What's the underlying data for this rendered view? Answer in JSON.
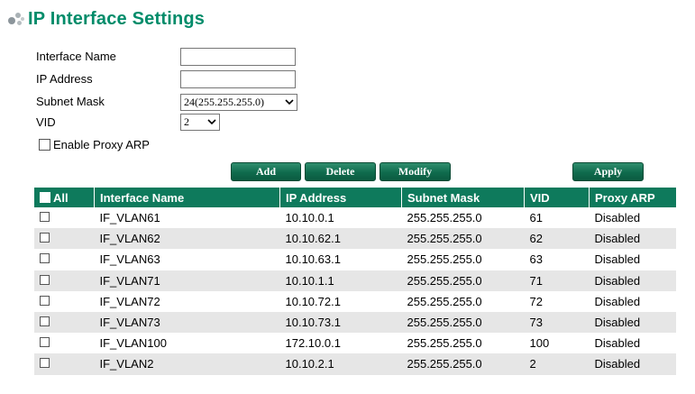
{
  "page": {
    "title": "IP Interface Settings"
  },
  "form": {
    "interface_name_label": "Interface Name",
    "interface_name_value": "",
    "ip_address_label": "IP Address",
    "ip_address_value": "",
    "subnet_mask_label": "Subnet Mask",
    "subnet_mask_selected": "24(255.255.255.0)",
    "vid_label": "VID",
    "vid_selected": "2",
    "proxy_arp_label": "Enable Proxy ARP"
  },
  "buttons": {
    "add": "Add",
    "delete": "Delete",
    "modify": "Modify",
    "apply": "Apply"
  },
  "table": {
    "select_all_label": "All",
    "headers": [
      "Interface Name",
      "IP Address",
      "Subnet Mask",
      "VID",
      "Proxy ARP"
    ],
    "rows": [
      {
        "name": "IF_VLAN61",
        "ip": "10.10.0.1",
        "mask": "255.255.255.0",
        "vid": "61",
        "proxy": "Disabled"
      },
      {
        "name": "IF_VLAN62",
        "ip": "10.10.62.1",
        "mask": "255.255.255.0",
        "vid": "62",
        "proxy": "Disabled"
      },
      {
        "name": "IF_VLAN63",
        "ip": "10.10.63.1",
        "mask": "255.255.255.0",
        "vid": "63",
        "proxy": "Disabled"
      },
      {
        "name": "IF_VLAN71",
        "ip": "10.10.1.1",
        "mask": "255.255.255.0",
        "vid": "71",
        "proxy": "Disabled"
      },
      {
        "name": "IF_VLAN72",
        "ip": "10.10.72.1",
        "mask": "255.255.255.0",
        "vid": "72",
        "proxy": "Disabled"
      },
      {
        "name": "IF_VLAN73",
        "ip": "10.10.73.1",
        "mask": "255.255.255.0",
        "vid": "73",
        "proxy": "Disabled"
      },
      {
        "name": "IF_VLAN100",
        "ip": "172.10.0.1",
        "mask": "255.255.255.0",
        "vid": "100",
        "proxy": "Disabled"
      },
      {
        "name": "IF_VLAN2",
        "ip": "10.10.2.1",
        "mask": "255.255.255.0",
        "vid": "2",
        "proxy": "Disabled"
      }
    ]
  },
  "colors": {
    "accent": "#0e7a5c",
    "title": "#008c6a",
    "row_alt": "#e6e6e6"
  },
  "icons": {
    "title_bullet": "dots-bullet-icon",
    "dropdown": "chevron-down-icon",
    "checkbox": "checkbox-icon"
  }
}
